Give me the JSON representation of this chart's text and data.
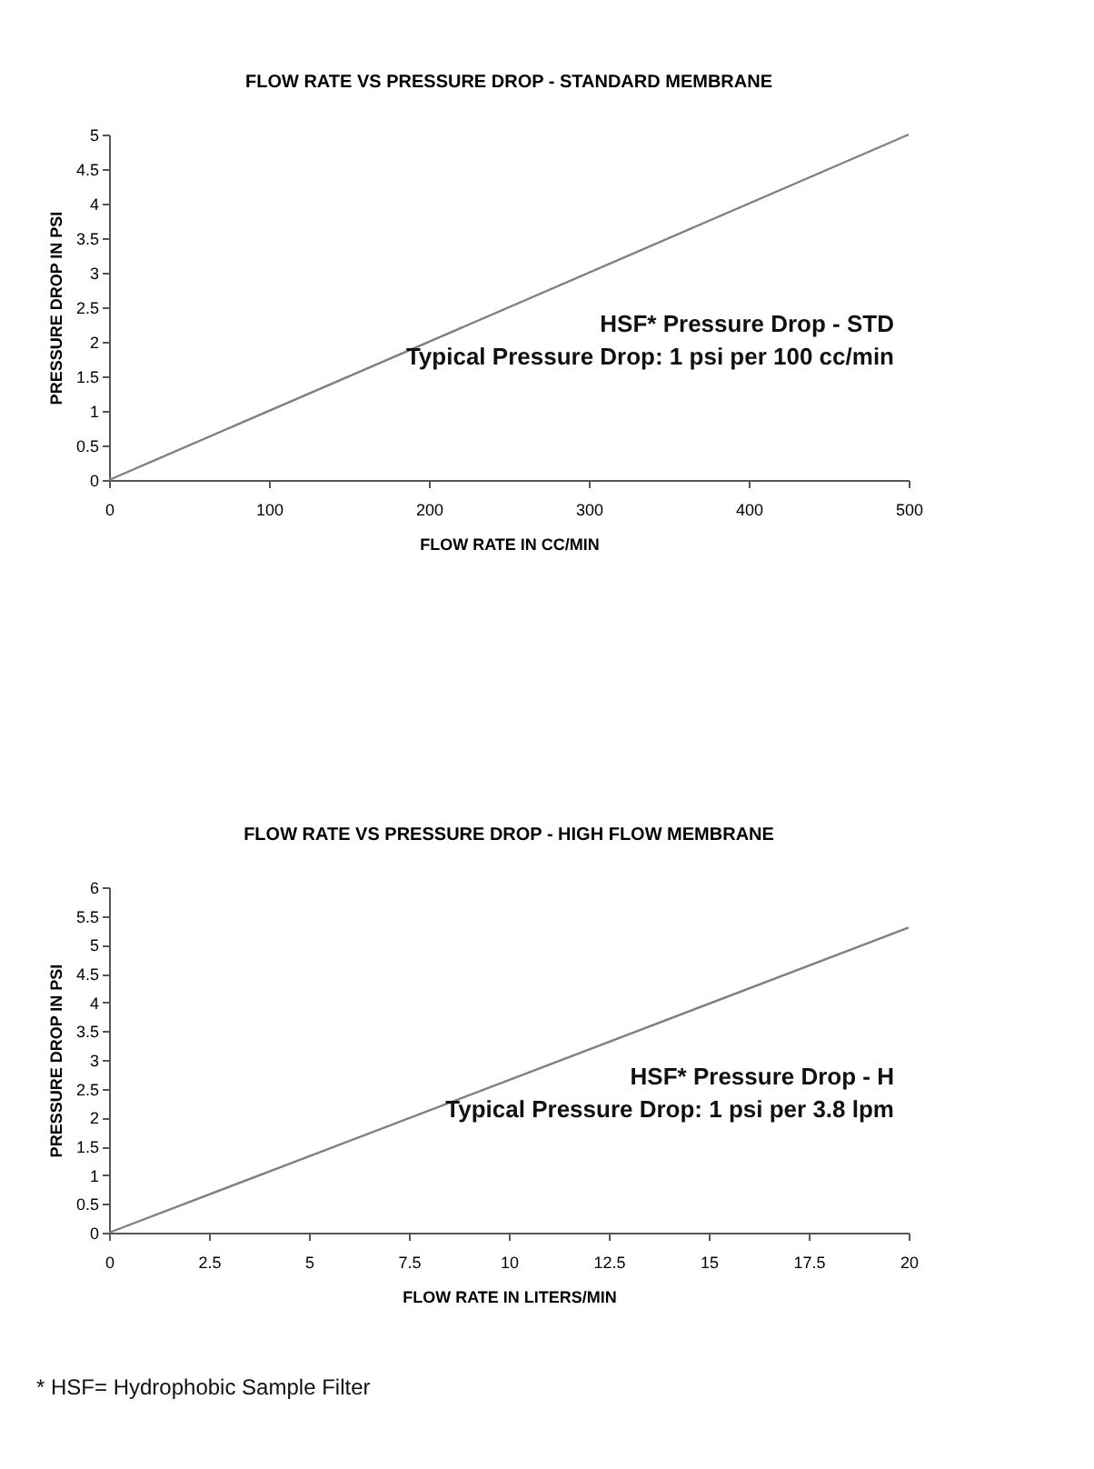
{
  "chart_data": [
    {
      "type": "line",
      "title": "FLOW RATE VS PRESSURE DROP - STANDARD MEMBRANE",
      "xlabel": "FLOW RATE IN CC/MIN",
      "ylabel": "PRESSURE DROP IN PSI",
      "x": [
        0,
        500
      ],
      "series": [
        {
          "color": "#808080",
          "values": [
            0,
            5
          ]
        }
      ],
      "xlim": [
        0,
        500
      ],
      "xticks": [
        0,
        100,
        200,
        300,
        400,
        500
      ],
      "ylim": [
        0,
        5
      ],
      "yticks": [
        0,
        0.5,
        1,
        1.5,
        2,
        2.5,
        3,
        3.5,
        4,
        4.5,
        5
      ],
      "grid": false,
      "marker": "none",
      "line_style": "solid",
      "annotations": [
        "HSF* Pressure Drop - STD",
        "Typical Pressure Drop: 1 psi per 100 cc/min"
      ]
    },
    {
      "type": "line",
      "title": "FLOW RATE VS PRESSURE DROP - HIGH FLOW MEMBRANE",
      "xlabel": "FLOW RATE IN LITERS/MIN",
      "ylabel": "PRESSURE DROP IN PSI",
      "x": [
        0,
        20
      ],
      "series": [
        {
          "color": "#808080",
          "values": [
            0,
            5.3
          ]
        }
      ],
      "xlim": [
        0,
        20
      ],
      "xticks": [
        0,
        2.5,
        5,
        7.5,
        10,
        12.5,
        15,
        17.5,
        20
      ],
      "ylim": [
        0,
        6
      ],
      "yticks": [
        0,
        0.5,
        1,
        1.5,
        2,
        2.5,
        3,
        3.5,
        4,
        4.5,
        5,
        5.5,
        6
      ],
      "grid": false,
      "marker": "none",
      "line_style": "solid",
      "annotations": [
        "HSF* Pressure Drop - H",
        "Typical Pressure Drop: 1 psi per 3.8 lpm",
        "* HSF= Hydrophobic Sample Filter"
      ]
    }
  ]
}
